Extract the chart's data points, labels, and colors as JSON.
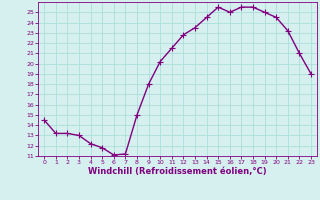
{
  "x": [
    0,
    1,
    2,
    3,
    4,
    5,
    6,
    7,
    8,
    9,
    10,
    11,
    12,
    13,
    14,
    15,
    16,
    17,
    18,
    19,
    20,
    21,
    22,
    23
  ],
  "y": [
    14.5,
    13.2,
    13.2,
    13.0,
    12.2,
    11.8,
    11.1,
    11.2,
    15.0,
    18.0,
    20.2,
    21.5,
    22.8,
    23.5,
    24.5,
    25.5,
    25.0,
    25.5,
    25.5,
    25.0,
    24.5,
    23.2,
    21.0,
    19.0
  ],
  "line_color": "#800080",
  "marker": "+",
  "marker_size": 4,
  "bg_color": "#d5f0ee",
  "grid_color": "#aadddd",
  "xlabel": "Windchill (Refroidissement éolien,°C)",
  "xlabel_color": "#800080",
  "tick_color": "#800080",
  "ylim": [
    11,
    26
  ],
  "xlim": [
    -0.5,
    23.5
  ],
  "yticks": [
    11,
    12,
    13,
    14,
    15,
    16,
    17,
    18,
    19,
    20,
    21,
    22,
    23,
    24,
    25
  ],
  "xticks": [
    0,
    1,
    2,
    3,
    4,
    5,
    6,
    7,
    8,
    9,
    10,
    11,
    12,
    13,
    14,
    15,
    16,
    17,
    18,
    19,
    20,
    21,
    22,
    23
  ],
  "line_width": 1.0
}
